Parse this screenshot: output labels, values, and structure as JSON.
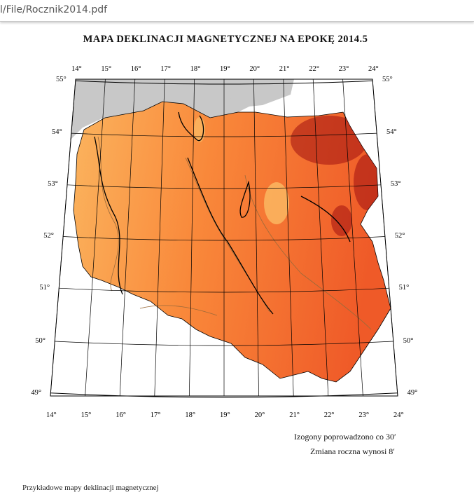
{
  "browser": {
    "url": "l/File/Rocznik2014.pdf"
  },
  "document": {
    "title": "MAPA DEKLINACJI MAGNETYCZNEJ NA EPOKĘ 2014.5",
    "note_isogons": "Izogony poprowadzono co 30′",
    "note_annual": "Zmiana roczna wynosi 8′",
    "footer_text": "Przykładowe mapy deklinacji magnetycznej"
  },
  "map": {
    "type": "magnetic declination map",
    "epoch": "2014.5",
    "meridians": [
      {
        "deg": 14,
        "label": "14°"
      },
      {
        "deg": 15,
        "label": "15°"
      },
      {
        "deg": 16,
        "label": "16°"
      },
      {
        "deg": 17,
        "label": "17°"
      },
      {
        "deg": 18,
        "label": "18°"
      },
      {
        "deg": 19,
        "label": "19°"
      },
      {
        "deg": 20,
        "label": "20°"
      },
      {
        "deg": 21,
        "label": "21°"
      },
      {
        "deg": 22,
        "label": "22°"
      },
      {
        "deg": 23,
        "label": "23°"
      },
      {
        "deg": 24,
        "label": "24°"
      }
    ],
    "parallels": [
      {
        "deg": 55,
        "label": "55°"
      },
      {
        "deg": 54,
        "label": "54°"
      },
      {
        "deg": 53,
        "label": "53°"
      },
      {
        "deg": 52,
        "label": "52°"
      },
      {
        "deg": 51,
        "label": "51°"
      },
      {
        "deg": 50,
        "label": "50°"
      },
      {
        "deg": 49,
        "label": "49°"
      }
    ],
    "colors": {
      "sea": "#c8c8c8",
      "west": "#fbb45e",
      "center": "#f9883a",
      "east": "#ef5a28",
      "anomaly": "#a01010",
      "grid": "#000000",
      "isogon": "#9a6a3a"
    }
  }
}
